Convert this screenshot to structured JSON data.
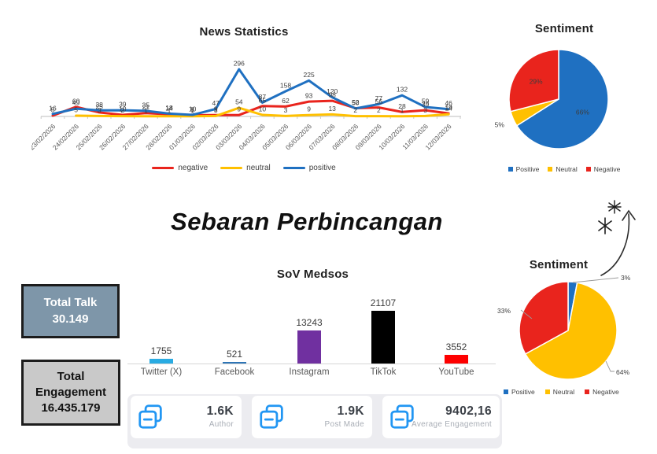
{
  "section_title": "Sebaran Perbincangan",
  "totals": {
    "talk_label": "Total Talk",
    "talk_value": "30.149",
    "talk_bg": "#7E96A9",
    "engagement_label": "Total Engagement",
    "engagement_value": "16.435.179",
    "engagement_bg": "#C9C9C9"
  },
  "stat_cards": [
    {
      "value": "1.6K",
      "label": "Author",
      "icon": "copy-icon"
    },
    {
      "value": "1.9K",
      "label": "Post Made",
      "icon": "copy-icon"
    },
    {
      "value": "9402,16",
      "label": "Average Engagement",
      "icon": "copy-icon"
    }
  ],
  "stat_icon_color": "#2196F3",
  "chart_data": [
    {
      "type": "line",
      "title": "News Statistics",
      "x": [
        "23/02/2026",
        "24/02/2026",
        "25/02/2026",
        "26/02/2026",
        "27/02/2026",
        "28/02/2026",
        "01/03/2026",
        "02/03/2026",
        "03/03/2026",
        "04/03/2026",
        "05/03/2026",
        "06/03/2026",
        "07/03/2026",
        "08/03/2026",
        "09/03/2026",
        "10/03/2026",
        "11/03/2026",
        "12/03/2026"
      ],
      "series": [
        {
          "name": "negative",
          "color": "#E9241D",
          "values": [
            5,
            60,
            25,
            10,
            21,
            14,
            8,
            9,
            9,
            65,
            62,
            93,
            98,
            52,
            56,
            28,
            39,
            19
          ]
        },
        {
          "name": "neutral",
          "color": "#FFC000",
          "values": [
            null,
            5,
            3,
            2,
            1,
            1,
            1,
            3,
            54,
            10,
            3,
            9,
            13,
            2,
            2,
            1,
            3,
            14
          ]
        },
        {
          "name": "positive",
          "color": "#1F70C1",
          "values": [
            16,
            49,
            38,
            39,
            35,
            18,
            10,
            47,
            296,
            87,
            158,
            225,
            120,
            50,
            77,
            132,
            59,
            46
          ]
        }
      ],
      "ylim": [
        0,
        320
      ],
      "grid": false,
      "data_labels": true,
      "legend_position": "bottom"
    },
    {
      "type": "pie",
      "title": "Sentiment",
      "slices": [
        {
          "label": "Positive",
          "pct": "66%",
          "value": 66,
          "color": "#1F70C1"
        },
        {
          "label": "Neutral",
          "pct": "5%",
          "value": 5,
          "color": "#FFC000"
        },
        {
          "label": "Negative",
          "pct": "29%",
          "value": 29,
          "color": "#E9241D"
        }
      ],
      "legend_position": "bottom"
    },
    {
      "type": "bar",
      "title": "SoV Medsos",
      "categories": [
        "Twitter (X)",
        "Facebook",
        "Instagram",
        "TikTok",
        "YouTube"
      ],
      "values": [
        1755,
        521,
        13243,
        21107,
        3552
      ],
      "colors": [
        "#29ABE2",
        "#2E75B6",
        "#7030A0",
        "#000000",
        "#FE0000"
      ],
      "ylim": [
        0,
        21107
      ],
      "data_labels": true
    },
    {
      "type": "pie",
      "title": "Sentiment",
      "slices": [
        {
          "label": "Positive",
          "pct": "3%",
          "value": 3,
          "color": "#1F70C1"
        },
        {
          "label": "Neutral",
          "pct": "64%",
          "value": 64,
          "color": "#FFC000"
        },
        {
          "label": "Negative",
          "pct": "33%",
          "value": 33,
          "color": "#E9241D"
        }
      ],
      "legend_position": "bottom",
      "annotations": [
        "hand-drawn-arrow",
        "asterisk",
        "asterisk"
      ]
    }
  ]
}
